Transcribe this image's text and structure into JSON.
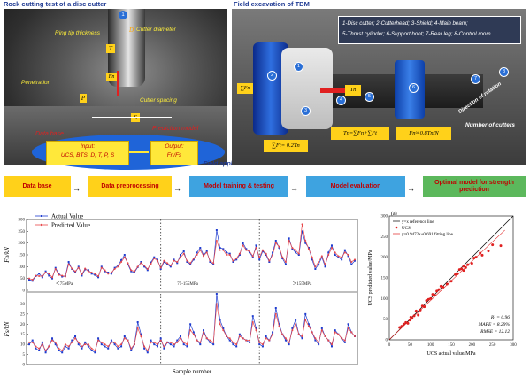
{
  "left_panel": {
    "title": "Rock cutting test of a disc cutter",
    "ring_tip_label": "Ring tip thickness",
    "cutter_diameter_label": "Cutter diameter",
    "penetration_label": "Penetration",
    "cutter_spacing_label": "Cutter spacing",
    "symbol_T": "T",
    "symbol_D": "D",
    "symbol_Fn": "Fn",
    "symbol_P": "P",
    "symbol_S": "S",
    "marker_1": "1",
    "data_base_label": "Data base",
    "prediction_model_label": "Prediction model",
    "input_text_1": "Input:",
    "input_text_2": "UCS, BTS, D, T, P, S",
    "output_text_1": "Output:",
    "output_text_2": "Fn/Fs",
    "field_application_label": "Field application"
  },
  "right_panel": {
    "title": "Field excavation of TBM",
    "legend_line1": "1-Disc cutter; 2-Cutterhead; 3-Shield; 4-Main beam;",
    "legend_line2": "5-Thrust cylinder; 6-Support boot; 7-Rear leg; 8-Control room",
    "sum_fn": "∑Fn",
    "sum_ft": "∑Ft= 0.2Tn",
    "tn_label": "Tn",
    "rotation_label": "Direction of rotation",
    "eq_tn": "Tn=∑Fn+∑Ft",
    "eq_fn": "Fn≈ 0.8Tn/N",
    "number_cutters": "Number of cutters",
    "component_numbers": [
      "1",
      "2",
      "3",
      "4",
      "5",
      "6",
      "7",
      "8"
    ]
  },
  "flow": {
    "steps": [
      "Data base",
      "Data preprocessing",
      "Model training & testing",
      "Model evaluation",
      "Optimal model for strength prediction"
    ],
    "colors": [
      "#ffd11a",
      "#ffd11a",
      "#3ea3e0",
      "#3ea3e0",
      "#5cb85c"
    ]
  },
  "timeseries": {
    "legend_actual": "Actual Value",
    "legend_predicted": "Predicted Value",
    "top_ylabel": "Fn/kN",
    "bottom_ylabel": "Fs/kN",
    "xlabel": "Sample number",
    "region_1": "＜75MPa",
    "region_2": "75-155MPa",
    "region_3": "＞155MPa",
    "actual_color": "#1f3ccf",
    "predicted_color": "#e8474a"
  },
  "scatter_panel": {
    "panel_label": "(a)",
    "legend_ref": "y=x reference line",
    "legend_ucs": "UCS",
    "legend_fit": "y=0.9472x+0.691 fitting line",
    "stat_r2": "R² = 0.96",
    "stat_mape": "MAPE = 8.29%",
    "stat_rmse": "RMSE = 12.12",
    "xlabel": "UCS actual value/MPa",
    "ylabel": "UCS predicted value/MPa",
    "point_color": "#e02020"
  },
  "chart_data": [
    {
      "type": "line",
      "title": "",
      "ylabel": "Fn/kN",
      "xlabel": "",
      "ylim": [
        0,
        300
      ],
      "yticks": [
        0,
        50,
        100,
        150,
        200,
        250,
        300
      ],
      "separators": [
        40,
        70
      ],
      "series": [
        {
          "name": "Actual Value",
          "values": [
            45,
            40,
            60,
            70,
            55,
            80,
            62,
            50,
            95,
            70,
            58,
            60,
            120,
            90,
            75,
            100,
            62,
            88,
            85,
            70,
            65,
            55,
            100,
            80,
            75,
            70,
            95,
            105,
            128,
            150,
            110,
            80,
            75,
            98,
            120,
            100,
            85,
            118,
            140,
            130,
            90,
            120,
            110,
            100,
            130,
            115,
            150,
            165,
            120,
            110,
            130,
            160,
            180,
            150,
            165,
            120,
            110,
            255,
            180,
            175,
            160,
            155,
            120,
            130,
            150,
            200,
            175,
            160,
            140,
            190,
            130,
            165,
            150,
            120,
            160,
            210,
            180,
            135,
            110,
            220,
            175,
            160,
            150,
            250,
            200,
            180,
            130,
            90,
            110,
            140,
            100,
            160,
            190,
            150,
            140,
            130,
            170,
            145,
            110,
            125
          ]
        },
        {
          "name": "Predicted Value",
          "values": [
            50,
            45,
            62,
            60,
            60,
            75,
            70,
            55,
            90,
            65,
            62,
            58,
            110,
            92,
            80,
            95,
            68,
            92,
            80,
            75,
            70,
            60,
            95,
            85,
            70,
            75,
            90,
            100,
            120,
            140,
            115,
            85,
            80,
            100,
            115,
            105,
            90,
            112,
            135,
            125,
            95,
            125,
            115,
            105,
            125,
            120,
            140,
            155,
            125,
            115,
            135,
            150,
            170,
            145,
            160,
            125,
            115,
            210,
            170,
            170,
            150,
            150,
            125,
            135,
            155,
            190,
            170,
            165,
            145,
            180,
            140,
            170,
            155,
            125,
            150,
            200,
            185,
            140,
            120,
            210,
            180,
            170,
            155,
            280,
            210,
            175,
            140,
            100,
            120,
            145,
            110,
            150,
            180,
            160,
            145,
            140,
            160,
            150,
            120,
            130
          ]
        }
      ]
    },
    {
      "type": "line",
      "title": "",
      "ylabel": "Fs/kN",
      "xlabel": "Sample number",
      "ylim": [
        0,
        35
      ],
      "yticks": [
        0,
        5,
        10,
        15,
        20,
        25,
        30,
        35
      ],
      "separators": [
        40,
        70
      ],
      "series": [
        {
          "name": "Actual Value",
          "values": [
            10,
            12,
            8,
            7,
            11,
            6,
            9,
            13,
            10,
            7,
            6,
            9,
            8,
            12,
            14,
            10,
            8,
            11,
            9,
            7,
            6,
            13,
            10,
            9,
            8,
            12,
            10,
            8,
            9,
            14,
            12,
            7,
            10,
            21,
            15,
            8,
            6,
            12,
            10,
            9,
            13,
            8,
            11,
            10,
            9,
            12,
            14,
            10,
            9,
            20,
            16,
            12,
            10,
            17,
            13,
            11,
            10,
            35,
            22,
            18,
            14,
            12,
            10,
            9,
            15,
            13,
            12,
            11,
            24,
            18,
            10,
            9,
            14,
            12,
            16,
            28,
            20,
            15,
            12,
            10,
            18,
            22,
            15,
            13,
            25,
            20,
            16,
            12,
            10,
            18,
            14,
            12,
            9,
            17,
            15,
            13,
            11,
            20,
            16,
            14
          ]
        },
        {
          "name": "Predicted Value",
          "values": [
            11,
            11,
            9,
            8,
            10,
            7,
            9,
            12,
            11,
            8,
            7,
            10,
            9,
            11,
            13,
            11,
            9,
            10,
            10,
            8,
            7,
            12,
            11,
            10,
            9,
            11,
            11,
            9,
            10,
            13,
            12,
            8,
            10,
            18,
            14,
            9,
            7,
            11,
            11,
            10,
            12,
            9,
            11,
            11,
            10,
            11,
            13,
            11,
            10,
            17,
            15,
            12,
            11,
            16,
            13,
            12,
            11,
            30,
            20,
            17,
            14,
            13,
            11,
            10,
            14,
            13,
            12,
            12,
            21,
            17,
            11,
            10,
            13,
            12,
            15,
            25,
            19,
            15,
            13,
            11,
            17,
            20,
            15,
            14,
            22,
            19,
            16,
            13,
            11,
            17,
            14,
            12,
            10,
            16,
            15,
            13,
            12,
            18,
            16,
            14
          ]
        }
      ]
    },
    {
      "type": "scatter",
      "title": "",
      "xlabel": "UCS actual value/MPa",
      "ylabel": "UCS predicted value/MPa",
      "xlim": [
        0,
        300
      ],
      "ylim": [
        0,
        300
      ],
      "ticks": [
        0,
        50,
        100,
        150,
        200,
        250,
        300
      ],
      "fit": {
        "slope": 0.9472,
        "intercept": 0.691
      },
      "x": [
        25,
        30,
        35,
        40,
        45,
        50,
        52,
        55,
        60,
        65,
        70,
        75,
        80,
        85,
        90,
        95,
        100,
        105,
        110,
        115,
        120,
        125,
        130,
        140,
        150,
        160,
        165,
        170,
        175,
        180,
        180,
        185,
        190,
        200,
        205,
        210,
        220,
        225,
        240,
        250,
        270
      ],
      "y": [
        30,
        33,
        38,
        42,
        40,
        48,
        55,
        52,
        58,
        70,
        60,
        72,
        82,
        80,
        95,
        98,
        100,
        110,
        108,
        118,
        122,
        130,
        128,
        135,
        142,
        158,
        160,
        170,
        172,
        168,
        178,
        175,
        182,
        185,
        198,
        200,
        210,
        205,
        215,
        230,
        228
      ]
    }
  ]
}
